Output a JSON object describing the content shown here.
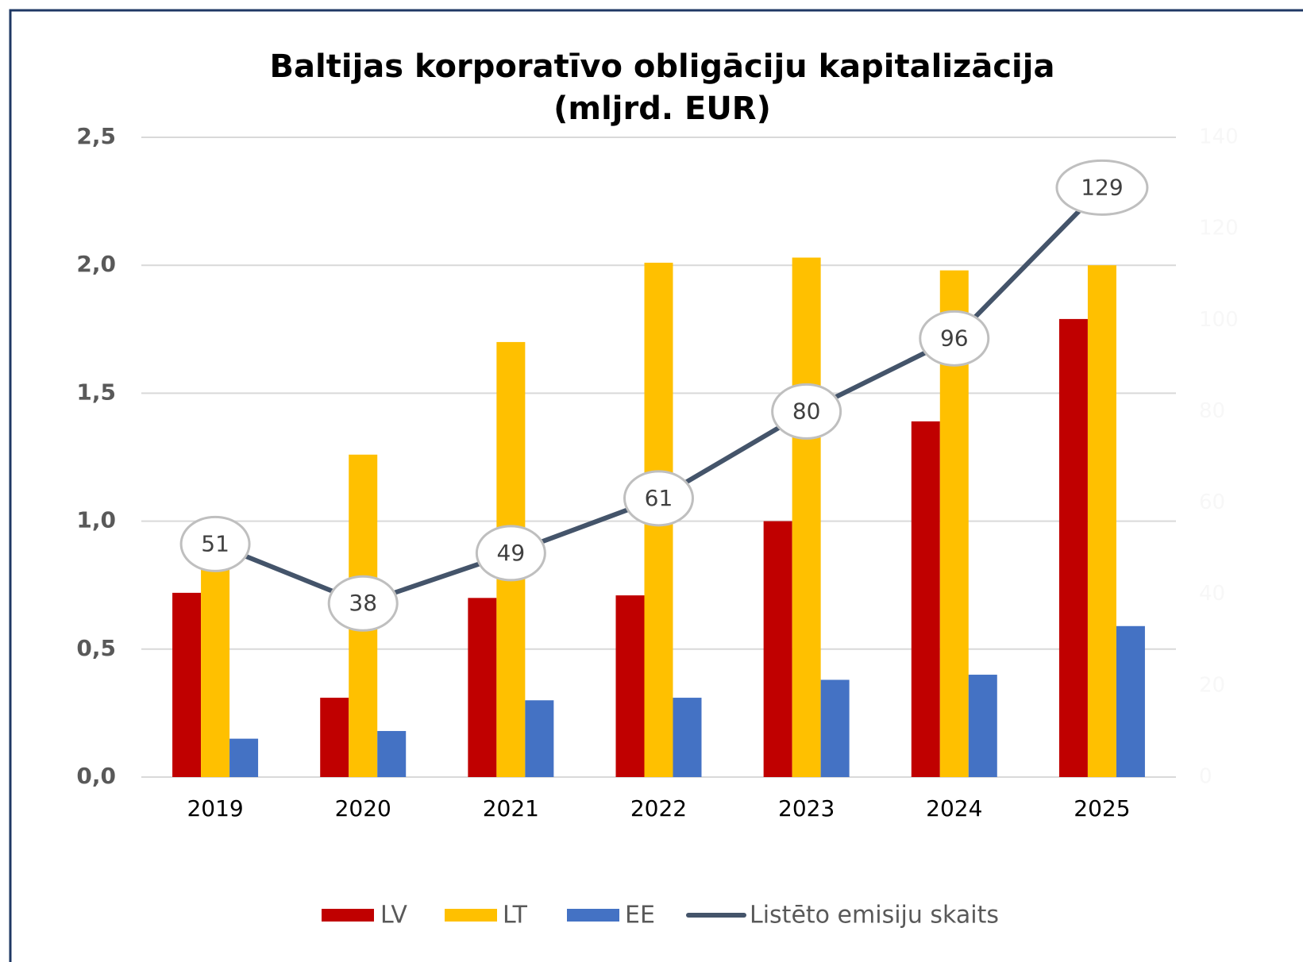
{
  "chart_data": {
    "type": "bar",
    "title": "Baltijas korporatīvo obligāciju kapitalizācija",
    "subtitle": "(mljrd. EUR)",
    "categories": [
      "2019",
      "2020",
      "2021",
      "2022",
      "2023",
      "2024",
      "2025"
    ],
    "series": [
      {
        "name": "LV",
        "color": "#c00000",
        "values": [
          0.72,
          0.31,
          0.7,
          0.71,
          1.0,
          1.39,
          1.79
        ]
      },
      {
        "name": "LT",
        "color": "#ffc000",
        "values": [
          0.85,
          1.26,
          1.7,
          2.01,
          2.03,
          1.98,
          2.0
        ]
      },
      {
        "name": "EE",
        "color": "#4472c4",
        "values": [
          0.15,
          0.18,
          0.3,
          0.31,
          0.38,
          0.4,
          0.59
        ]
      },
      {
        "name": "Listēto emisiju skaits",
        "type": "line",
        "axis": "y2",
        "color": "#44546a",
        "values": [
          51,
          38,
          49,
          61,
          80,
          96,
          129
        ]
      }
    ],
    "ylim": [
      0,
      2.5
    ],
    "yticks": [
      {
        "value": 0,
        "label": "0,0"
      },
      {
        "value": 0.5,
        "label": "0,5"
      },
      {
        "value": 1,
        "label": "1,0"
      },
      {
        "value": 1.5,
        "label": "1,5"
      },
      {
        "value": 2,
        "label": "2,0"
      },
      {
        "value": 2.5,
        "label": "2,5"
      }
    ],
    "y2lim": [
      0,
      140
    ],
    "y2ticks": [
      0,
      20,
      40,
      60,
      80,
      100,
      120,
      140
    ],
    "grid": true,
    "legend": "bottom"
  }
}
